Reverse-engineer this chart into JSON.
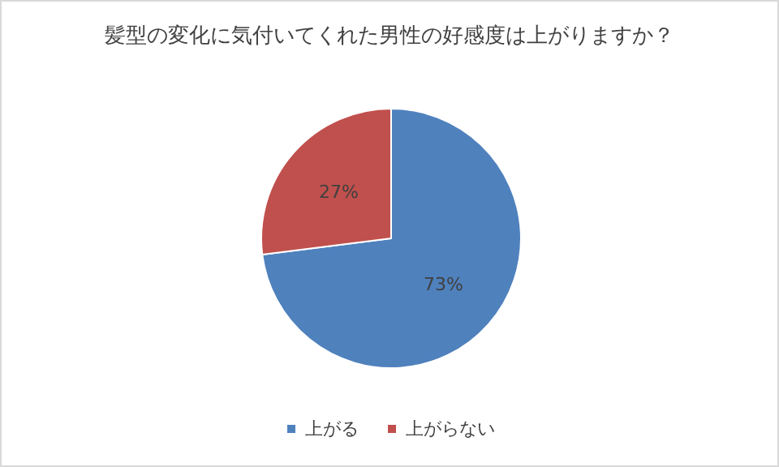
{
  "chart_data": {
    "type": "pie",
    "title": "髪型の変化に気付いてくれた男性の好感度は上がりますか？",
    "categories": [
      "上がる",
      "上がらない"
    ],
    "values": [
      73,
      27
    ],
    "colors": [
      "#4f81bd",
      "#c0504d"
    ],
    "value_labels": [
      "73%",
      "27%"
    ],
    "legend": "bottom"
  }
}
